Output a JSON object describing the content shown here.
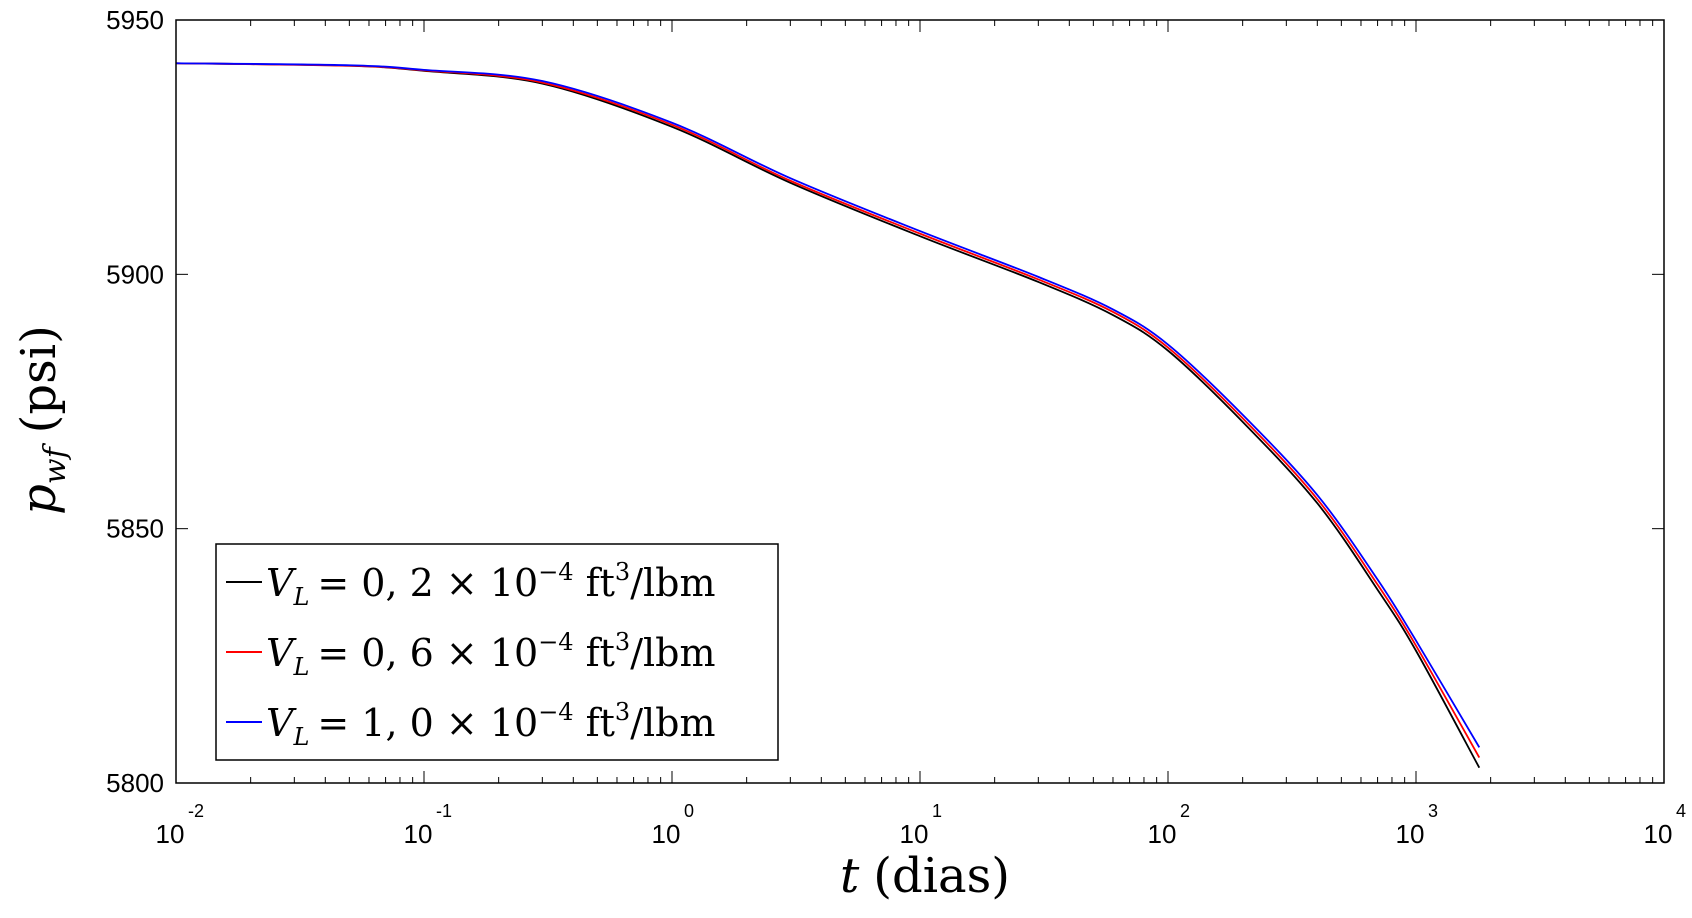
{
  "chart_data": {
    "type": "line",
    "title": "",
    "xlabel": "t (dias)",
    "ylabel": "p_wf (psi)",
    "xlabel_parts": {
      "var": "t",
      "rest": "(dias)"
    },
    "ylabel_parts": {
      "var": "p",
      "sub": "wf",
      "rest": "(psi)"
    },
    "xscale": "log",
    "xlim": [
      0.01,
      10000
    ],
    "ylim": [
      5800,
      5950
    ],
    "grid": false,
    "legend_position": "bottom-left",
    "x_ticks": [
      {
        "base": "10",
        "exp": "-2"
      },
      {
        "base": "10",
        "exp": "-1"
      },
      {
        "base": "10",
        "exp": "0"
      },
      {
        "base": "10",
        "exp": "1"
      },
      {
        "base": "10",
        "exp": "2"
      },
      {
        "base": "10",
        "exp": "3"
      },
      {
        "base": "10",
        "exp": "4"
      }
    ],
    "y_ticks": [
      "5800",
      "5850",
      "5900",
      "5950"
    ],
    "x": [
      0.01,
      0.05,
      0.1,
      0.3,
      1,
      3,
      10,
      30,
      60,
      100,
      200,
      400,
      700,
      1000,
      1800
    ],
    "series": [
      {
        "name": "V_L = 0,2 × 10^-4 ft³/lbm",
        "legend": {
          "var": "V",
          "sub": "L",
          "coef": "= 0, 2 × 10",
          "exp": "−4",
          "unit": "ft",
          "unit_exp": "3",
          "tail": "/lbm"
        },
        "color": "#000000",
        "values": [
          5941.5,
          5941.0,
          5940.0,
          5937.5,
          5929.0,
          5918.0,
          5907.5,
          5898.5,
          5892.0,
          5885.0,
          5871.0,
          5855.0,
          5838.0,
          5826.0,
          5803.0
        ]
      },
      {
        "name": "V_L = 0,6 × 10^-4 ft³/lbm",
        "legend": {
          "var": "V",
          "sub": "L",
          "coef": "= 0, 6 × 10",
          "exp": "−4",
          "unit": "ft",
          "unit_exp": "3",
          "tail": "/lbm"
        },
        "color": "#ff0000",
        "values": [
          5941.5,
          5941.0,
          5940.1,
          5937.7,
          5929.4,
          5918.4,
          5908.0,
          5899.0,
          5892.6,
          5885.6,
          5871.7,
          5855.8,
          5839.0,
          5827.0,
          5805.0
        ]
      },
      {
        "name": "V_L = 1,0 × 10^-4 ft³/lbm",
        "legend": {
          "var": "V",
          "sub": "L",
          "coef": "= 1, 0 × 10",
          "exp": "−4",
          "unit": "ft",
          "unit_exp": "3",
          "tail": "/lbm"
        },
        "color": "#0000ff",
        "values": [
          5941.5,
          5941.1,
          5940.2,
          5938.0,
          5929.8,
          5918.9,
          5908.5,
          5899.5,
          5893.1,
          5886.2,
          5872.4,
          5856.6,
          5840.0,
          5828.0,
          5807.0
        ]
      }
    ]
  }
}
